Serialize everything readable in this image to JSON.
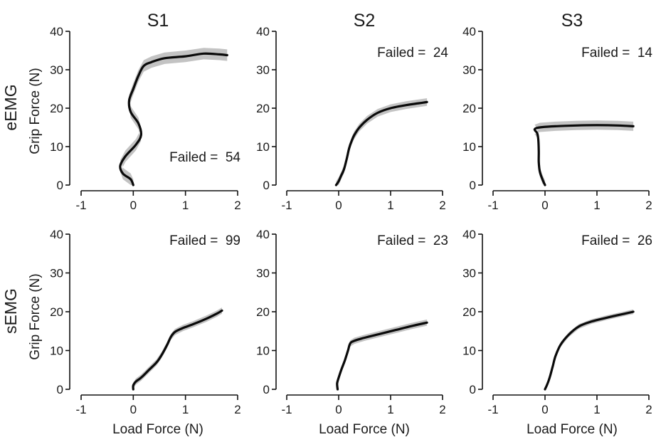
{
  "columns": [
    "S1",
    "S2",
    "S3"
  ],
  "rows": [
    "eEMG",
    "sEMG"
  ],
  "ylabel": "Grip Force (N)",
  "xlabel": "Load Force (N)",
  "colors": {
    "curve": "#0a0a0a",
    "band": "#b9b9b9",
    "axis": "#111111"
  },
  "chart_data": [
    {
      "type": "line",
      "row": "eEMG",
      "column": "S1",
      "annotation": "Failed =  54",
      "xlim": [
        -1,
        2
      ],
      "ylim": [
        0,
        40
      ],
      "xticks": [
        -1,
        0,
        1,
        2
      ],
      "yticks": [
        0,
        10,
        20,
        30,
        40
      ],
      "band_halfwidth": 1.5,
      "x": [
        0.0,
        -0.05,
        -0.2,
        -0.25,
        -0.15,
        0.05,
        0.15,
        0.1,
        -0.05,
        -0.08,
        0.0,
        0.1,
        0.2,
        0.35,
        0.6,
        1.0,
        1.35,
        1.65,
        1.8
      ],
      "y": [
        0.0,
        1.5,
        3.0,
        5.0,
        7.5,
        10.5,
        13.0,
        16.0,
        19.0,
        22.0,
        25.0,
        28.5,
        31.0,
        32.0,
        33.0,
        33.5,
        34.2,
        34.0,
        33.8
      ]
    },
    {
      "type": "line",
      "row": "eEMG",
      "column": "S2",
      "annotation": "Failed =  24",
      "xlim": [
        -1,
        2
      ],
      "ylim": [
        0,
        40
      ],
      "xticks": [
        -1,
        0,
        1,
        2
      ],
      "yticks": [
        0,
        10,
        20,
        30,
        40
      ],
      "band_halfwidth": 1.0,
      "x": [
        -0.05,
        0.0,
        0.05,
        0.1,
        0.15,
        0.2,
        0.25,
        0.3,
        0.4,
        0.55,
        0.75,
        1.0,
        1.3,
        1.55,
        1.7
      ],
      "y": [
        0.0,
        1.0,
        2.5,
        4.0,
        6.5,
        9.5,
        11.5,
        13.0,
        15.0,
        17.0,
        18.8,
        20.0,
        20.8,
        21.3,
        21.6
      ]
    },
    {
      "type": "line",
      "row": "eEMG",
      "column": "S3",
      "annotation": "Failed =  14",
      "xlim": [
        -1,
        2
      ],
      "ylim": [
        0,
        40
      ],
      "xticks": [
        -1,
        0,
        1,
        2
      ],
      "yticks": [
        0,
        10,
        20,
        30,
        40
      ],
      "band_halfwidth": 1.2,
      "x": [
        0.0,
        -0.05,
        -0.1,
        -0.12,
        -0.12,
        -0.13,
        -0.15,
        -0.2,
        -0.1,
        0.2,
        0.6,
        1.0,
        1.4,
        1.7
      ],
      "y": [
        0.0,
        1.5,
        3.5,
        6.0,
        9.0,
        12.0,
        13.5,
        14.5,
        15.0,
        15.3,
        15.5,
        15.6,
        15.5,
        15.3
      ]
    },
    {
      "type": "line",
      "row": "sEMG",
      "column": "S1",
      "annotation": "Failed =  99",
      "xlim": [
        -1,
        2
      ],
      "ylim": [
        0,
        40
      ],
      "xticks": [
        -1,
        0,
        1,
        2
      ],
      "yticks": [
        0,
        10,
        20,
        30,
        40
      ],
      "band_halfwidth": 0.8,
      "x": [
        0.0,
        0.0,
        0.05,
        0.15,
        0.3,
        0.45,
        0.55,
        0.65,
        0.72,
        0.8,
        0.95,
        1.15,
        1.4,
        1.6,
        1.7
      ],
      "y": [
        0.0,
        1.0,
        2.0,
        3.0,
        5.0,
        7.0,
        9.0,
        11.5,
        13.5,
        14.8,
        15.8,
        16.8,
        18.2,
        19.5,
        20.3
      ]
    },
    {
      "type": "line",
      "row": "sEMG",
      "column": "S2",
      "annotation": "Failed =  23",
      "xlim": [
        -1,
        2
      ],
      "ylim": [
        0,
        40
      ],
      "xticks": [
        -1,
        0,
        1,
        2
      ],
      "yticks": [
        0,
        10,
        20,
        30,
        40
      ],
      "band_halfwidth": 0.8,
      "x": [
        -0.02,
        -0.03,
        0.0,
        0.05,
        0.12,
        0.18,
        0.22,
        0.3,
        0.5,
        0.8,
        1.1,
        1.4,
        1.7
      ],
      "y": [
        0.0,
        1.5,
        3.0,
        5.0,
        7.5,
        10.0,
        11.8,
        12.5,
        13.3,
        14.3,
        15.3,
        16.3,
        17.2
      ]
    },
    {
      "type": "line",
      "row": "sEMG",
      "column": "S3",
      "annotation": "Failed =  26",
      "xlim": [
        -1,
        2
      ],
      "ylim": [
        0,
        40
      ],
      "xticks": [
        -1,
        0,
        1,
        2
      ],
      "yticks": [
        0,
        10,
        20,
        30,
        40
      ],
      "band_halfwidth": 0.6,
      "x": [
        0.0,
        0.05,
        0.1,
        0.15,
        0.2,
        0.3,
        0.45,
        0.65,
        0.9,
        1.2,
        1.5,
        1.7
      ],
      "y": [
        0.0,
        1.5,
        3.5,
        6.0,
        8.5,
        11.5,
        14.0,
        16.2,
        17.5,
        18.5,
        19.4,
        20.0
      ]
    }
  ]
}
